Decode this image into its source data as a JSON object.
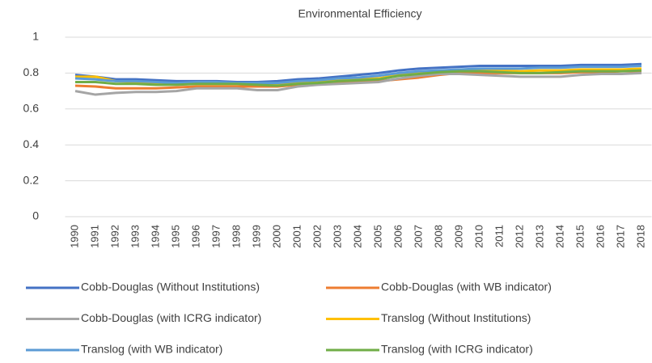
{
  "chart_data": {
    "type": "line",
    "title": "Environmental Efficiency",
    "categories": [
      "1990",
      "1991",
      "1992",
      "1993",
      "1994",
      "1995",
      "1996",
      "1997",
      "1998",
      "1999",
      "2000",
      "2001",
      "2002",
      "2003",
      "2004",
      "2005",
      "2006",
      "2007",
      "2008",
      "2009",
      "2010",
      "2011",
      "2012",
      "2013",
      "2014",
      "2015",
      "2016",
      "2017",
      "2018"
    ],
    "series": [
      {
        "name": "Cobb-Douglas (Without Institutions)",
        "color": "#4472c4",
        "values": [
          0.79,
          0.78,
          0.765,
          0.765,
          0.76,
          0.755,
          0.755,
          0.755,
          0.75,
          0.75,
          0.755,
          0.765,
          0.77,
          0.78,
          0.79,
          0.8,
          0.815,
          0.825,
          0.83,
          0.835,
          0.84,
          0.84,
          0.84,
          0.84,
          0.84,
          0.845,
          0.845,
          0.845,
          0.85
        ]
      },
      {
        "name": "Cobb-Douglas (with WB indicator)",
        "color": "#ed7d31",
        "values": [
          0.73,
          0.725,
          0.715,
          0.715,
          0.715,
          0.72,
          0.725,
          0.725,
          0.725,
          0.725,
          0.725,
          0.735,
          0.74,
          0.745,
          0.75,
          0.755,
          0.765,
          0.775,
          0.79,
          0.8,
          0.8,
          0.8,
          0.8,
          0.8,
          0.8,
          0.805,
          0.805,
          0.81,
          0.81
        ]
      },
      {
        "name": "Cobb-Douglas (with ICRG indicator)",
        "color": "#a5a5a5",
        "values": [
          0.7,
          0.68,
          0.69,
          0.695,
          0.695,
          0.7,
          0.715,
          0.715,
          0.715,
          0.705,
          0.705,
          0.725,
          0.735,
          0.74,
          0.745,
          0.75,
          0.77,
          0.785,
          0.795,
          0.795,
          0.79,
          0.785,
          0.78,
          0.78,
          0.78,
          0.79,
          0.795,
          0.795,
          0.8
        ]
      },
      {
        "name": "Translog (Without Institutions)",
        "color": "#ffc000",
        "values": [
          0.78,
          0.78,
          0.755,
          0.75,
          0.745,
          0.74,
          0.74,
          0.74,
          0.74,
          0.74,
          0.735,
          0.745,
          0.75,
          0.76,
          0.765,
          0.77,
          0.79,
          0.8,
          0.81,
          0.815,
          0.815,
          0.815,
          0.81,
          0.815,
          0.815,
          0.82,
          0.82,
          0.82,
          0.825
        ]
      },
      {
        "name": "Translog (with WB indicator)",
        "color": "#5b9bd5",
        "values": [
          0.77,
          0.765,
          0.755,
          0.755,
          0.75,
          0.745,
          0.75,
          0.75,
          0.745,
          0.745,
          0.745,
          0.755,
          0.76,
          0.77,
          0.775,
          0.785,
          0.8,
          0.81,
          0.815,
          0.82,
          0.825,
          0.825,
          0.825,
          0.83,
          0.83,
          0.835,
          0.835,
          0.835,
          0.84
        ]
      },
      {
        "name": "Translog (with ICRG indicator)",
        "color": "#70ad47",
        "values": [
          0.75,
          0.75,
          0.74,
          0.74,
          0.735,
          0.735,
          0.74,
          0.74,
          0.74,
          0.735,
          0.73,
          0.74,
          0.745,
          0.755,
          0.76,
          0.765,
          0.785,
          0.795,
          0.805,
          0.81,
          0.81,
          0.805,
          0.8,
          0.8,
          0.805,
          0.81,
          0.81,
          0.81,
          0.815
        ]
      }
    ],
    "ylim": [
      0,
      1
    ],
    "yticks": [
      0,
      0.2,
      0.4,
      0.6,
      0.8,
      1
    ],
    "grid": true
  }
}
